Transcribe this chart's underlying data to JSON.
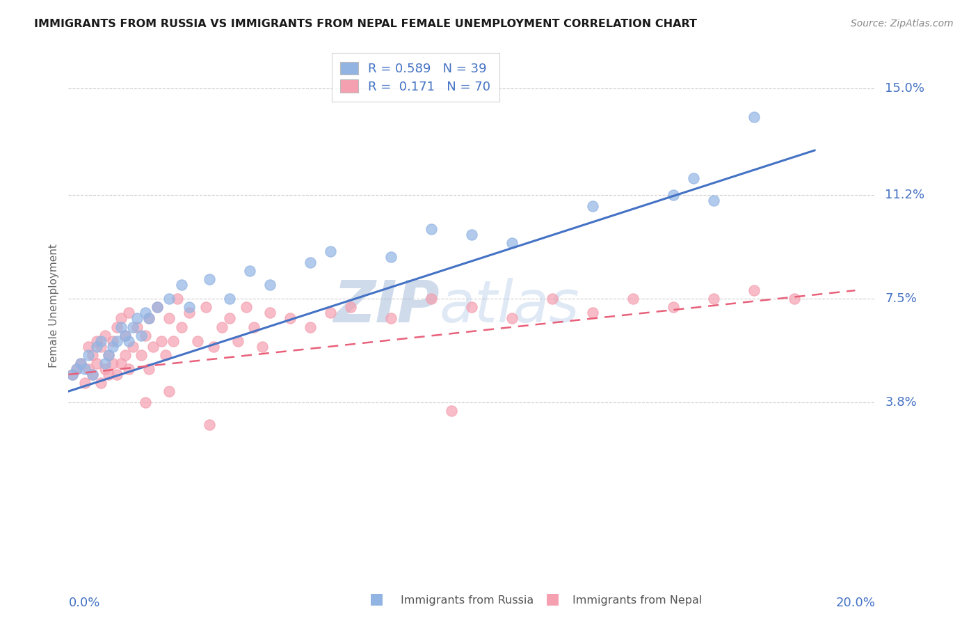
{
  "title": "IMMIGRANTS FROM RUSSIA VS IMMIGRANTS FROM NEPAL FEMALE UNEMPLOYMENT CORRELATION CHART",
  "source": "Source: ZipAtlas.com",
  "ylabel": "Female Unemployment",
  "xlim": [
    0.0,
    0.2
  ],
  "ylim": [
    -0.02,
    0.165
  ],
  "ytick_labels": [
    "3.8%",
    "7.5%",
    "11.2%",
    "15.0%"
  ],
  "ytick_values": [
    0.038,
    0.075,
    0.112,
    0.15
  ],
  "russia_color": "#92b4e3",
  "nepal_color": "#f4a0b0",
  "russia_line_color": "#4472c4",
  "nepal_line_color": "#e8607a",
  "russia_R": 0.589,
  "russia_N": 39,
  "nepal_R": 0.171,
  "nepal_N": 70,
  "legend_label_russia": "Immigrants from Russia",
  "legend_label_nepal": "Immigrants from Nepal",
  "watermark_zip": "ZIP",
  "watermark_atlas": "atlas",
  "background_color": "#ffffff",
  "grid_color": "#cccccc",
  "axis_label_color": "#4472c4",
  "russia_x": [
    0.001,
    0.002,
    0.003,
    0.004,
    0.005,
    0.006,
    0.007,
    0.008,
    0.009,
    0.01,
    0.011,
    0.012,
    0.013,
    0.014,
    0.015,
    0.016,
    0.017,
    0.018,
    0.019,
    0.02,
    0.022,
    0.025,
    0.028,
    0.03,
    0.035,
    0.04,
    0.045,
    0.05,
    0.06,
    0.065,
    0.08,
    0.09,
    0.1,
    0.11,
    0.13,
    0.15,
    0.16,
    0.17,
    0.155
  ],
  "russia_y": [
    0.048,
    0.05,
    0.052,
    0.05,
    0.055,
    0.048,
    0.058,
    0.06,
    0.052,
    0.055,
    0.058,
    0.06,
    0.065,
    0.062,
    0.06,
    0.065,
    0.068,
    0.062,
    0.07,
    0.068,
    0.072,
    0.075,
    0.08,
    0.072,
    0.082,
    0.075,
    0.085,
    0.08,
    0.088,
    0.092,
    0.09,
    0.1,
    0.098,
    0.095,
    0.108,
    0.112,
    0.11,
    0.14,
    0.118
  ],
  "nepal_x": [
    0.001,
    0.002,
    0.003,
    0.004,
    0.005,
    0.005,
    0.006,
    0.006,
    0.007,
    0.007,
    0.008,
    0.008,
    0.009,
    0.009,
    0.01,
    0.01,
    0.011,
    0.011,
    0.012,
    0.012,
    0.013,
    0.013,
    0.014,
    0.014,
    0.015,
    0.015,
    0.016,
    0.017,
    0.018,
    0.019,
    0.02,
    0.02,
    0.021,
    0.022,
    0.023,
    0.024,
    0.025,
    0.026,
    0.027,
    0.028,
    0.03,
    0.032,
    0.034,
    0.036,
    0.038,
    0.04,
    0.042,
    0.044,
    0.046,
    0.048,
    0.05,
    0.055,
    0.06,
    0.065,
    0.07,
    0.08,
    0.09,
    0.1,
    0.11,
    0.12,
    0.13,
    0.14,
    0.15,
    0.16,
    0.17,
    0.18,
    0.019,
    0.025,
    0.035,
    0.095
  ],
  "nepal_y": [
    0.048,
    0.05,
    0.052,
    0.045,
    0.05,
    0.058,
    0.048,
    0.055,
    0.052,
    0.06,
    0.045,
    0.058,
    0.05,
    0.062,
    0.048,
    0.055,
    0.052,
    0.06,
    0.048,
    0.065,
    0.052,
    0.068,
    0.055,
    0.062,
    0.05,
    0.07,
    0.058,
    0.065,
    0.055,
    0.062,
    0.05,
    0.068,
    0.058,
    0.072,
    0.06,
    0.055,
    0.068,
    0.06,
    0.075,
    0.065,
    0.07,
    0.06,
    0.072,
    0.058,
    0.065,
    0.068,
    0.06,
    0.072,
    0.065,
    0.058,
    0.07,
    0.068,
    0.065,
    0.07,
    0.072,
    0.068,
    0.075,
    0.072,
    0.068,
    0.075,
    0.07,
    0.075,
    0.072,
    0.075,
    0.078,
    0.075,
    0.038,
    0.042,
    0.03,
    0.035
  ],
  "russia_line_x": [
    0.0,
    0.185
  ],
  "russia_line_y": [
    0.042,
    0.128
  ],
  "nepal_line_x": [
    0.0,
    0.195
  ],
  "nepal_line_y": [
    0.048,
    0.078
  ]
}
